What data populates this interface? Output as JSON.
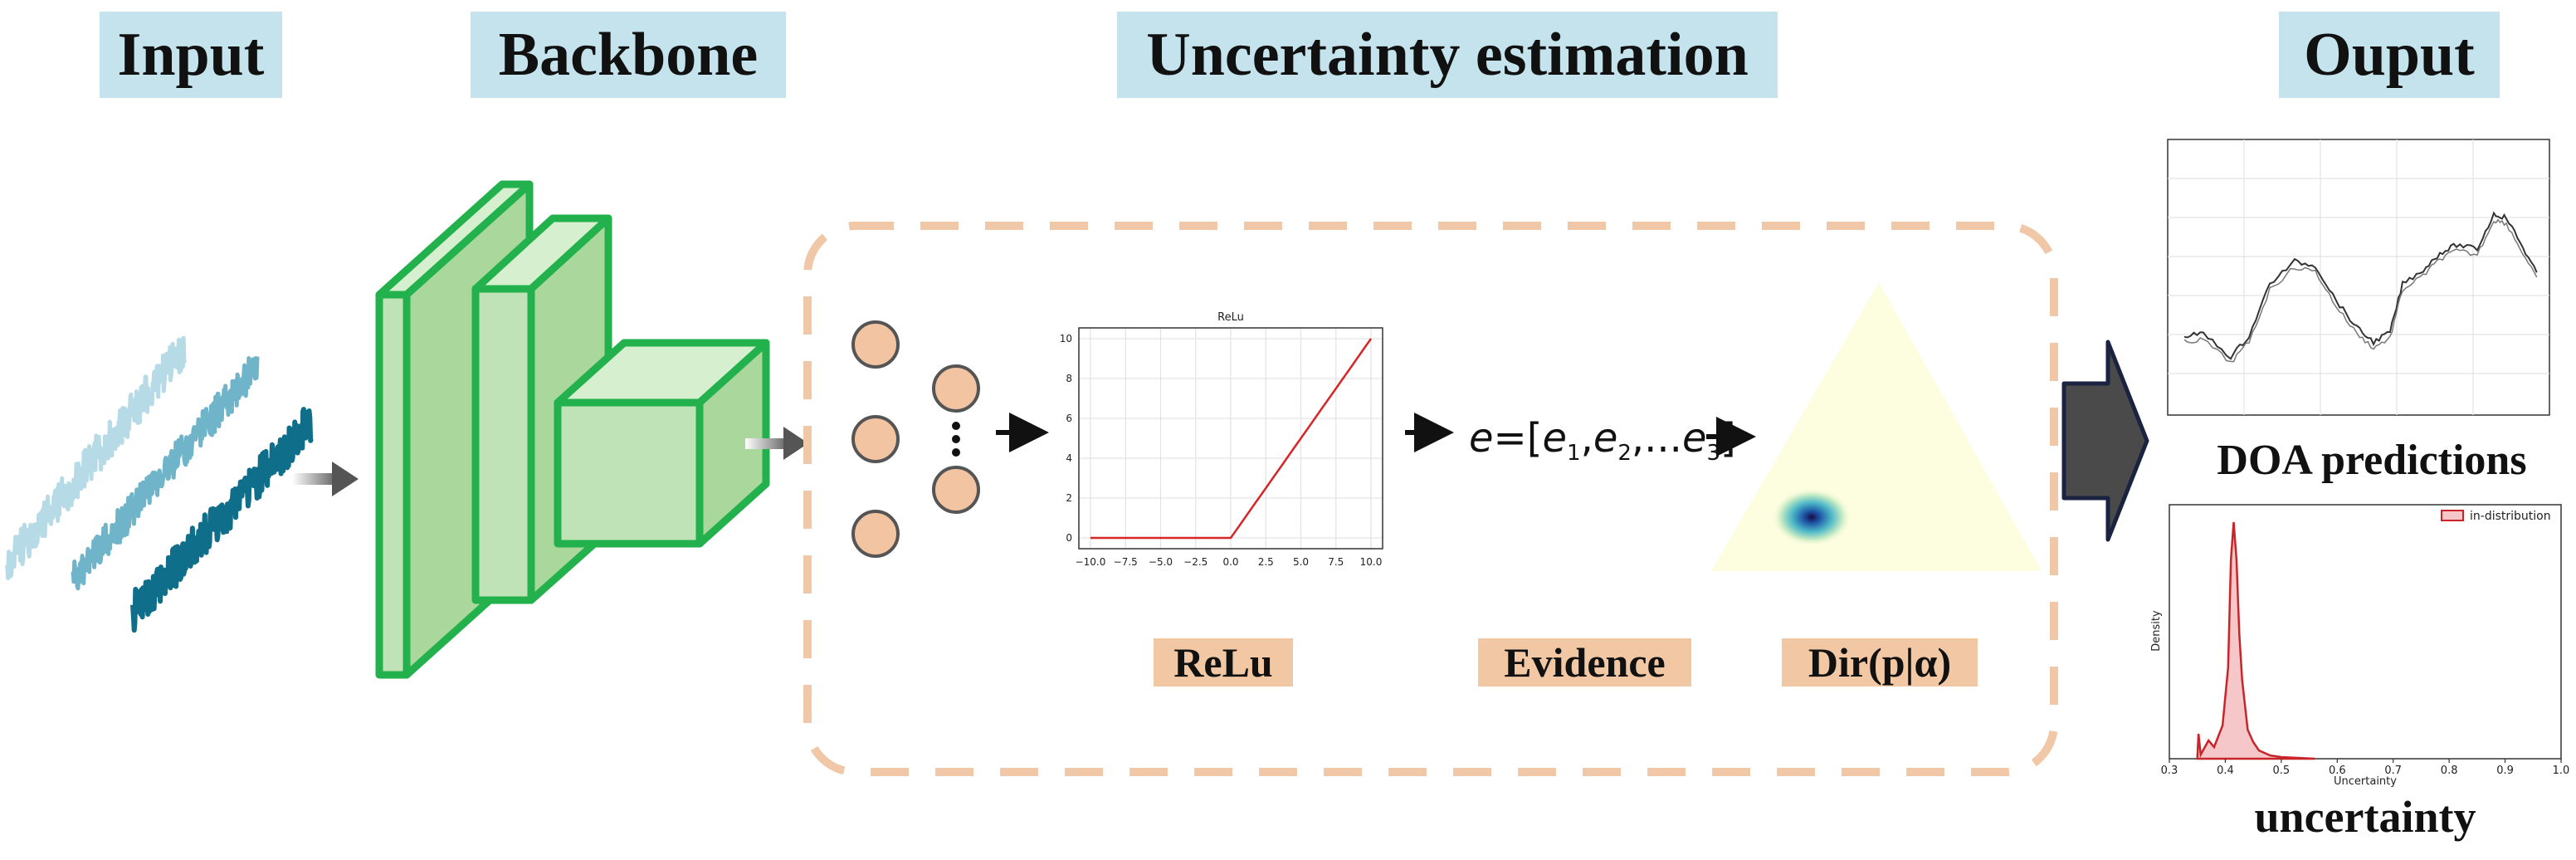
{
  "headers": {
    "input": "Input",
    "backbone": "Backbone",
    "uncertainty": "Uncertainty estimation",
    "output": "Ouput"
  },
  "uncertainty_block": {
    "relu_title": "ReLu",
    "relu_xticks": [
      "−10.0",
      "−7.5",
      "−5.0",
      "−2.5",
      "0.0",
      "2.5",
      "5.0",
      "7.5",
      "10.0"
    ],
    "relu_yticks": [
      "0",
      "2",
      "4",
      "6",
      "8",
      "10"
    ],
    "evidence_formula": {
      "var": "e",
      "eq": "=[",
      "e": "e",
      "sub1": "1",
      "sub2": "2",
      "dots": ",...",
      "sub3": "3",
      "close": "]"
    },
    "labels": {
      "relu": "ReLu",
      "evidence": "Evidence",
      "dir": "Dir(p|α)"
    }
  },
  "output": {
    "doa_caption": "DOA predictions",
    "uncertainty_caption": "uncertainty",
    "hist_legend": "in-distribution",
    "hist_xlabel": "Uncertainty",
    "hist_ylabel": "Density",
    "hist_xticks": [
      "0.3",
      "0.4",
      "0.5",
      "0.6",
      "0.7",
      "0.8",
      "0.9",
      "1.0"
    ]
  },
  "colors": {
    "header_bg": "#c5e3ec",
    "backbone_green": "#22b14c",
    "backbone_fill": "#bfe2b6",
    "neuron_fill": "#f3c4a2",
    "dashed_border": "#f0c8a8",
    "relu_line": "#d62728",
    "output_arrow": "#4a4a4a",
    "output_arrow_edge": "#1a2340"
  }
}
